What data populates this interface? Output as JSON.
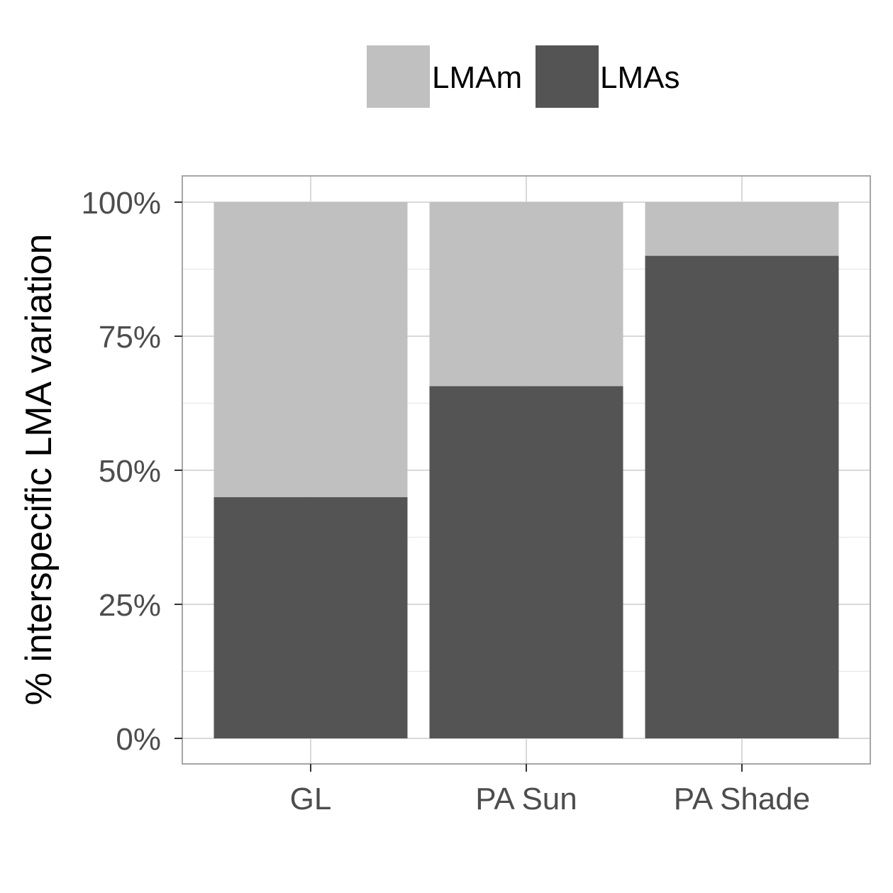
{
  "chart_data": {
    "type": "bar",
    "stacked": true,
    "categories": [
      "GL",
      "PA Sun",
      "PA Shade"
    ],
    "series": [
      {
        "name": "LMAs",
        "values": [
          45,
          65.7,
          90
        ],
        "color": "#545454"
      },
      {
        "name": "LMAm",
        "values": [
          55,
          34.3,
          10
        ],
        "color": "#c0c0c0"
      }
    ],
    "xlabel": "",
    "ylabel": "% interspecific LMA variation",
    "ylim": [
      0,
      100
    ],
    "yticks": [
      0,
      25,
      50,
      75,
      100
    ],
    "ytick_labels": [
      "0%",
      "25%",
      "50%",
      "75%",
      "100%"
    ],
    "legend": {
      "position": "top",
      "order": [
        "LMAm",
        "LMAs"
      ]
    },
    "grid": true,
    "colors": {
      "panel_border": "#a6a6a6",
      "grid_major": "#d9d9d9",
      "grid_minor": "#ebebeb",
      "tick_text": "#4d4d4d"
    }
  }
}
